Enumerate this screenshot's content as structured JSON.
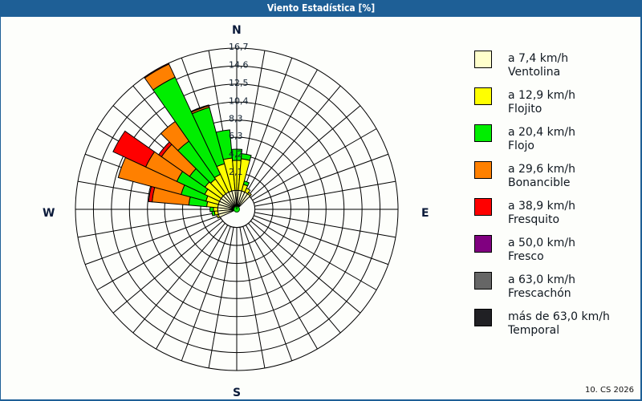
{
  "window": {
    "title": "Viento Estadística [%]"
  },
  "footer": {
    "text": "10. CS 2026"
  },
  "compass": {
    "N": "N",
    "E": "E",
    "S": "S",
    "W": "W"
  },
  "colors": {
    "frame": "#1e5f96",
    "background": "#fdfefb"
  },
  "legend": {
    "items": [
      {
        "line1": "a 7,4 km/h",
        "line2": "Ventolina",
        "color": "#ffffcc"
      },
      {
        "line1": "a 12,9 km/h",
        "line2": "Flojito",
        "color": "#ffff00"
      },
      {
        "line1": "a 20,4 km/h",
        "line2": "Flojo",
        "color": "#00ee00"
      },
      {
        "line1": "a 29,6 km/h",
        "line2": "Bonancible",
        "color": "#ff8000"
      },
      {
        "line1": "a 38,9 km/h",
        "line2": "Fresquito",
        "color": "#ff0000"
      },
      {
        "line1": "a 50,0 km/h",
        "line2": "Fresco",
        "color": "#800080"
      },
      {
        "line1": "a 63,0 km/h",
        "line2": "Frescachón",
        "color": "#666666"
      },
      {
        "line1": "más de 63,0 km/h",
        "line2": "Temporal",
        "color": "#202024"
      }
    ]
  },
  "chart_data": {
    "type": "wind-rose",
    "title": "Viento Estadística [%]",
    "unit": "%",
    "radial_ticks": [
      2.1,
      4.2,
      6.3,
      8.3,
      10.4,
      12.5,
      14.6,
      16.7
    ],
    "radial_tick_labels": [
      "2,1",
      "4,2",
      "6,3",
      "8,3",
      "10,4",
      "12,5",
      "14,6",
      "16,7"
    ],
    "rmax": 16.7,
    "spokes_deg": 10,
    "bins": [
      "Ventolina",
      "Flojito",
      "Flojo",
      "Bonancible",
      "Fresquito",
      "Fresco",
      "Frescachón",
      "Temporal"
    ],
    "directions_note": "cumulative % per direction (bearing degrees, clockwise from N); values: [ventolina, flojito, flojo, bonancible, fresquito]",
    "sectors": [
      {
        "dir": 270,
        "cum": [
          0.1,
          0.6,
          1.0,
          1.0,
          1.0
        ]
      },
      {
        "dir": 280,
        "cum": [
          0.1,
          1.4,
          3.5,
          7.8,
          8.2
        ]
      },
      {
        "dir": 290,
        "cum": [
          0.1,
          1.6,
          4.6,
          12.2,
          12.2
        ]
      },
      {
        "dir": 300,
        "cum": [
          0.1,
          2.0,
          5.6,
          9.6,
          13.8
        ]
      },
      {
        "dir": 310,
        "cum": [
          0.1,
          2.4,
          4.6,
          8.6,
          9.0
        ]
      },
      {
        "dir": 320,
        "cum": [
          0.1,
          2.2,
          7.6,
          10.4,
          10.4
        ]
      },
      {
        "dir": 330,
        "cum": [
          0.1,
          2.4,
          14.9,
          16.6,
          16.7
        ]
      },
      {
        "dir": 340,
        "cum": [
          0.1,
          3.4,
          10.2,
          10.4,
          10.5
        ]
      },
      {
        "dir": 350,
        "cum": [
          0.1,
          3.9,
          7.2,
          7.2,
          7.2
        ]
      },
      {
        "dir": 0,
        "cum": [
          0.1,
          3.6,
          4.9,
          4.9,
          4.9
        ]
      },
      {
        "dir": 10,
        "cum": [
          0.1,
          3.8,
          4.4,
          4.4,
          4.4
        ]
      },
      {
        "dir": 20,
        "cum": [
          0.1,
          0.9,
          1.3,
          1.3,
          1.3
        ]
      },
      {
        "dir": 30,
        "cum": [
          0.1,
          0.6,
          0.6,
          0.6,
          0.6
        ]
      },
      {
        "dir": 40,
        "cum": [
          0.1,
          0.3,
          0.3,
          0.3,
          0.3
        ]
      },
      {
        "dir": 250,
        "cum": [
          0.1,
          0.3,
          0.3,
          0.3,
          0.3
        ]
      },
      {
        "dir": 260,
        "cum": [
          0.1,
          0.5,
          0.8,
          0.8,
          0.8
        ]
      }
    ]
  }
}
